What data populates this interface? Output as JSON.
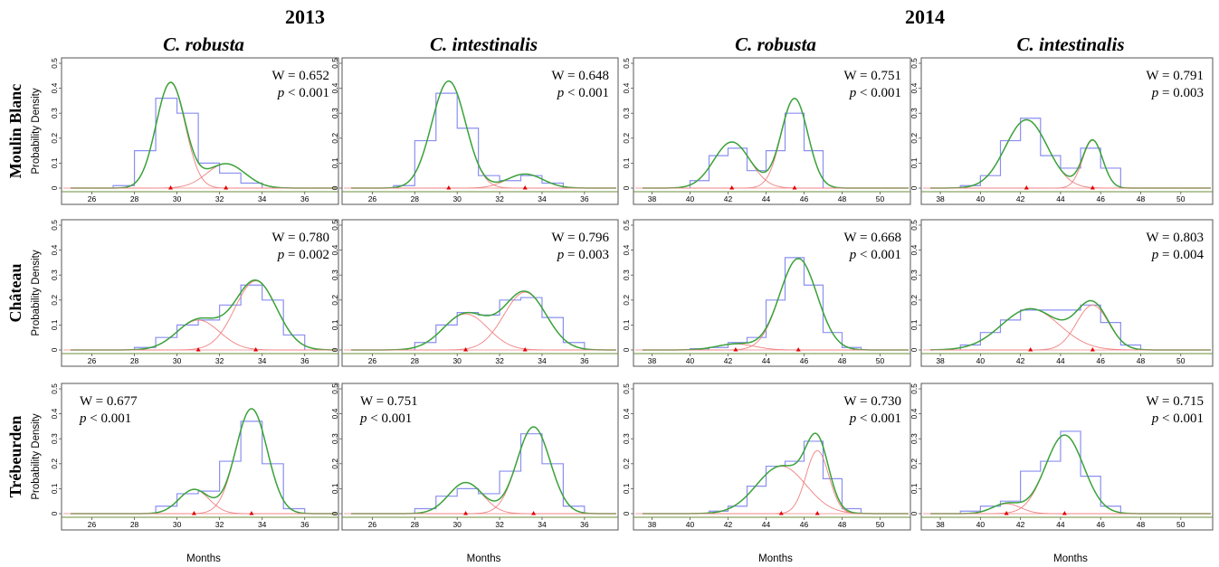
{
  "years": [
    "2013",
    "2014"
  ],
  "species": [
    "C. robusta",
    "C. intestinalis",
    "C. robusta",
    "C. intestinalis"
  ],
  "sites": [
    "Moulin Blanc",
    "Château",
    "Trébeurden"
  ],
  "ylabel": "Probability Density",
  "xlabel": "Months",
  "colors": {
    "histogram": "#8a8ff0",
    "components": "#f08080",
    "mixture": "#3aa23a",
    "axis": "#6b8e3a",
    "means": "#e00000"
  },
  "chart_data": [
    {
      "id": "mb-2013-rob",
      "type": "histogram",
      "site": "Moulin Blanc",
      "year": "2013",
      "species": "C. robusta",
      "W": "W = 0.652",
      "p": "< 0.001",
      "annot_pos": "top-right",
      "xlim": [
        25,
        37.5
      ],
      "ylim": [
        0,
        0.5
      ],
      "xticks": [
        26,
        28,
        30,
        32,
        34,
        36
      ],
      "yticks": [
        "0",
        "0.1",
        "0.2",
        "0.3",
        "0.4",
        "0.5"
      ],
      "bins": [
        {
          "x0": 27,
          "x1": 28,
          "y": 0.01
        },
        {
          "x0": 28,
          "x1": 29,
          "y": 0.15
        },
        {
          "x0": 29,
          "x1": 30,
          "y": 0.36
        },
        {
          "x0": 30,
          "x1": 31,
          "y": 0.3
        },
        {
          "x0": 31,
          "x1": 32,
          "y": 0.1
        },
        {
          "x0": 32,
          "x1": 33,
          "y": 0.06
        },
        {
          "x0": 33,
          "x1": 34,
          "y": 0.02
        }
      ],
      "components": [
        {
          "mean": 29.7,
          "sd": 0.68,
          "weight": 0.72
        },
        {
          "mean": 32.3,
          "sd": 0.9,
          "weight": 0.22
        }
      ]
    },
    {
      "id": "mb-2013-int",
      "type": "histogram",
      "site": "Moulin Blanc",
      "year": "2013",
      "species": "C. intestinalis",
      "W": "W = 0.648",
      "p": "< 0.001",
      "annot_pos": "top-right",
      "xlim": [
        25,
        37.5
      ],
      "ylim": [
        0,
        0.5
      ],
      "xticks": [
        26,
        28,
        30,
        32,
        34,
        36
      ],
      "yticks": [
        "0",
        "0.1",
        "0.2",
        "0.3",
        "0.4",
        "0.5"
      ],
      "bins": [
        {
          "x0": 27,
          "x1": 28,
          "y": 0.01
        },
        {
          "x0": 28,
          "x1": 29,
          "y": 0.19
        },
        {
          "x0": 29,
          "x1": 30,
          "y": 0.38
        },
        {
          "x0": 30,
          "x1": 31,
          "y": 0.24
        },
        {
          "x0": 31,
          "x1": 32,
          "y": 0.05
        },
        {
          "x0": 32,
          "x1": 33,
          "y": 0.03
        },
        {
          "x0": 33,
          "x1": 34,
          "y": 0.05
        },
        {
          "x0": 34,
          "x1": 35,
          "y": 0.02
        }
      ],
      "components": [
        {
          "mean": 29.6,
          "sd": 0.8,
          "weight": 0.86
        },
        {
          "mean": 33.2,
          "sd": 0.85,
          "weight": 0.12
        }
      ]
    },
    {
      "id": "mb-2014-rob",
      "type": "histogram",
      "site": "Moulin Blanc",
      "year": "2014",
      "species": "C. robusta",
      "W": "W = 0.751",
      "p": "< 0.001",
      "annot_pos": "top-right",
      "xlim": [
        37.5,
        51.5
      ],
      "ylim": [
        0,
        0.5
      ],
      "xticks": [
        38,
        40,
        42,
        44,
        46,
        48,
        50
      ],
      "yticks": [
        "0",
        "0.1",
        "0.2",
        "0.3",
        "0.4",
        "0.5"
      ],
      "bins": [
        {
          "x0": 40,
          "x1": 41,
          "y": 0.03
        },
        {
          "x0": 41,
          "x1": 42,
          "y": 0.13
        },
        {
          "x0": 42,
          "x1": 43,
          "y": 0.16
        },
        {
          "x0": 43,
          "x1": 44,
          "y": 0.07
        },
        {
          "x0": 44,
          "x1": 45,
          "y": 0.15
        },
        {
          "x0": 45,
          "x1": 46,
          "y": 0.3
        },
        {
          "x0": 46,
          "x1": 47,
          "y": 0.15
        }
      ],
      "components": [
        {
          "mean": 42.2,
          "sd": 0.95,
          "weight": 0.44
        },
        {
          "mean": 45.5,
          "sd": 0.7,
          "weight": 0.63
        }
      ]
    },
    {
      "id": "mb-2014-int",
      "type": "histogram",
      "site": "Moulin Blanc",
      "year": "2014",
      "species": "C. intestinalis",
      "W": "W = 0.791",
      "p": "= 0.003",
      "annot_pos": "top-right",
      "xlim": [
        37.5,
        51.5
      ],
      "ylim": [
        0,
        0.5
      ],
      "xticks": [
        38,
        40,
        42,
        44,
        46,
        48,
        50
      ],
      "yticks": [
        "0",
        "0.1",
        "0.2",
        "0.3",
        "0.4",
        "0.5"
      ],
      "bins": [
        {
          "x0": 39,
          "x1": 40,
          "y": 0.01
        },
        {
          "x0": 40,
          "x1": 41,
          "y": 0.05
        },
        {
          "x0": 41,
          "x1": 42,
          "y": 0.19
        },
        {
          "x0": 42,
          "x1": 43,
          "y": 0.28
        },
        {
          "x0": 43,
          "x1": 44,
          "y": 0.13
        },
        {
          "x0": 44,
          "x1": 45,
          "y": 0.08
        },
        {
          "x0": 45,
          "x1": 46,
          "y": 0.16
        },
        {
          "x0": 46,
          "x1": 47,
          "y": 0.08
        }
      ],
      "components": [
        {
          "mean": 42.3,
          "sd": 1.05,
          "weight": 0.72
        },
        {
          "mean": 45.6,
          "sd": 0.5,
          "weight": 0.24
        }
      ]
    },
    {
      "id": "ch-2013-rob",
      "type": "histogram",
      "site": "Château",
      "year": "2013",
      "species": "C. robusta",
      "W": "W = 0.780",
      "p": "= 0.002",
      "annot_pos": "top-right",
      "xlim": [
        25,
        37.5
      ],
      "ylim": [
        0,
        0.5
      ],
      "xticks": [
        26,
        28,
        30,
        32,
        34,
        36
      ],
      "yticks": [
        "0",
        "0.1",
        "0.2",
        "0.3",
        "0.4",
        "0.5"
      ],
      "bins": [
        {
          "x0": 28,
          "x1": 29,
          "y": 0.01
        },
        {
          "x0": 29,
          "x1": 30,
          "y": 0.05
        },
        {
          "x0": 30,
          "x1": 31,
          "y": 0.1
        },
        {
          "x0": 31,
          "x1": 32,
          "y": 0.12
        },
        {
          "x0": 32,
          "x1": 33,
          "y": 0.18
        },
        {
          "x0": 33,
          "x1": 34,
          "y": 0.26
        },
        {
          "x0": 34,
          "x1": 35,
          "y": 0.2
        },
        {
          "x0": 35,
          "x1": 36,
          "y": 0.06
        }
      ],
      "components": [
        {
          "mean": 31.0,
          "sd": 1.0,
          "weight": 0.3
        },
        {
          "mean": 33.7,
          "sd": 0.98,
          "weight": 0.68
        }
      ]
    },
    {
      "id": "ch-2013-int",
      "type": "histogram",
      "site": "Château",
      "year": "2013",
      "species": "C. intestinalis",
      "W": "W = 0.796",
      "p": "= 0.003",
      "annot_pos": "top-right",
      "xlim": [
        25,
        37.5
      ],
      "ylim": [
        0,
        0.5
      ],
      "xticks": [
        26,
        28,
        30,
        32,
        34,
        36
      ],
      "yticks": [
        "0",
        "0.1",
        "0.2",
        "0.3",
        "0.4",
        "0.5"
      ],
      "bins": [
        {
          "x0": 28,
          "x1": 29,
          "y": 0.03
        },
        {
          "x0": 29,
          "x1": 30,
          "y": 0.1
        },
        {
          "x0": 30,
          "x1": 31,
          "y": 0.15
        },
        {
          "x0": 31,
          "x1": 32,
          "y": 0.14
        },
        {
          "x0": 32,
          "x1": 33,
          "y": 0.2
        },
        {
          "x0": 33,
          "x1": 34,
          "y": 0.21
        },
        {
          "x0": 34,
          "x1": 35,
          "y": 0.13
        },
        {
          "x0": 35,
          "x1": 36,
          "y": 0.03
        }
      ],
      "components": [
        {
          "mean": 30.4,
          "sd": 1.05,
          "weight": 0.38
        },
        {
          "mean": 33.2,
          "sd": 1.0,
          "weight": 0.58
        }
      ]
    },
    {
      "id": "ch-2014-rob",
      "type": "histogram",
      "site": "Château",
      "year": "2014",
      "species": "C. robusta",
      "W": "W = 0.668",
      "p": "< 0.001",
      "annot_pos": "top-right",
      "xlim": [
        37.5,
        51.5
      ],
      "ylim": [
        0,
        0.5
      ],
      "xticks": [
        38,
        40,
        42,
        44,
        46,
        48,
        50
      ],
      "yticks": [
        "0",
        "0.1",
        "0.2",
        "0.3",
        "0.4",
        "0.5"
      ],
      "bins": [
        {
          "x0": 40,
          "x1": 41,
          "y": 0.005
        },
        {
          "x0": 41,
          "x1": 42,
          "y": 0.01
        },
        {
          "x0": 42,
          "x1": 43,
          "y": 0.03
        },
        {
          "x0": 43,
          "x1": 44,
          "y": 0.05
        },
        {
          "x0": 44,
          "x1": 45,
          "y": 0.2
        },
        {
          "x0": 45,
          "x1": 46,
          "y": 0.37
        },
        {
          "x0": 46,
          "x1": 47,
          "y": 0.26
        },
        {
          "x0": 47,
          "x1": 48,
          "y": 0.07
        },
        {
          "x0": 48,
          "x1": 49,
          "y": 0.01
        }
      ],
      "components": [
        {
          "mean": 42.4,
          "sd": 1.0,
          "weight": 0.06
        },
        {
          "mean": 45.7,
          "sd": 0.98,
          "weight": 0.9
        }
      ]
    },
    {
      "id": "ch-2014-int",
      "type": "histogram",
      "site": "Château",
      "year": "2014",
      "species": "C. intestinalis",
      "W": "W = 0.803",
      "p": "= 0.004",
      "annot_pos": "top-right",
      "xlim": [
        37.5,
        51.5
      ],
      "ylim": [
        0,
        0.5
      ],
      "xticks": [
        38,
        40,
        42,
        44,
        46,
        48,
        50
      ],
      "yticks": [
        "0",
        "0.1",
        "0.2",
        "0.3",
        "0.4",
        "0.5"
      ],
      "bins": [
        {
          "x0": 39,
          "x1": 40,
          "y": 0.02
        },
        {
          "x0": 40,
          "x1": 41,
          "y": 0.07
        },
        {
          "x0": 41,
          "x1": 42,
          "y": 0.12
        },
        {
          "x0": 42,
          "x1": 43,
          "y": 0.16
        },
        {
          "x0": 43,
          "x1": 44,
          "y": 0.16
        },
        {
          "x0": 44,
          "x1": 45,
          "y": 0.16
        },
        {
          "x0": 45,
          "x1": 46,
          "y": 0.18
        },
        {
          "x0": 46,
          "x1": 47,
          "y": 0.11
        },
        {
          "x0": 47,
          "x1": 48,
          "y": 0.02
        }
      ],
      "components": [
        {
          "mean": 42.5,
          "sd": 1.45,
          "weight": 0.6
        },
        {
          "mean": 45.6,
          "sd": 0.8,
          "weight": 0.36
        }
      ]
    },
    {
      "id": "tr-2013-rob",
      "type": "histogram",
      "site": "Trébeurden",
      "year": "2013",
      "species": "C. robusta",
      "W": "W = 0.677",
      "p": "< 0.001",
      "annot_pos": "top-left",
      "xlim": [
        25,
        37.5
      ],
      "ylim": [
        0,
        0.5
      ],
      "xticks": [
        26,
        28,
        30,
        32,
        34,
        36
      ],
      "yticks": [
        "0",
        "0.1",
        "0.2",
        "0.3",
        "0.4",
        "0.5"
      ],
      "bins": [
        {
          "x0": 29,
          "x1": 30,
          "y": 0.03
        },
        {
          "x0": 30,
          "x1": 31,
          "y": 0.08
        },
        {
          "x0": 31,
          "x1": 32,
          "y": 0.09
        },
        {
          "x0": 32,
          "x1": 33,
          "y": 0.21
        },
        {
          "x0": 33,
          "x1": 34,
          "y": 0.37
        },
        {
          "x0": 34,
          "x1": 35,
          "y": 0.2
        },
        {
          "x0": 35,
          "x1": 36,
          "y": 0.02
        }
      ],
      "components": [
        {
          "mean": 30.8,
          "sd": 0.7,
          "weight": 0.17
        },
        {
          "mean": 33.5,
          "sd": 0.74,
          "weight": 0.78
        }
      ]
    },
    {
      "id": "tr-2013-int",
      "type": "histogram",
      "site": "Trébeurden",
      "year": "2013",
      "species": "C. intestinalis",
      "W": "W = 0.751",
      "p": "< 0.001",
      "annot_pos": "top-left",
      "xlim": [
        25,
        37.5
      ],
      "ylim": [
        0,
        0.5
      ],
      "xticks": [
        26,
        28,
        30,
        32,
        34,
        36
      ],
      "yticks": [
        "0",
        "0.1",
        "0.2",
        "0.3",
        "0.4",
        "0.5"
      ],
      "bins": [
        {
          "x0": 28,
          "x1": 29,
          "y": 0.02
        },
        {
          "x0": 29,
          "x1": 30,
          "y": 0.07
        },
        {
          "x0": 30,
          "x1": 31,
          "y": 0.1
        },
        {
          "x0": 31,
          "x1": 32,
          "y": 0.08
        },
        {
          "x0": 32,
          "x1": 33,
          "y": 0.17
        },
        {
          "x0": 33,
          "x1": 34,
          "y": 0.32
        },
        {
          "x0": 34,
          "x1": 35,
          "y": 0.2
        },
        {
          "x0": 35,
          "x1": 36,
          "y": 0.03
        }
      ],
      "components": [
        {
          "mean": 30.4,
          "sd": 0.8,
          "weight": 0.25
        },
        {
          "mean": 33.6,
          "sd": 0.78,
          "weight": 0.68
        }
      ]
    },
    {
      "id": "tr-2014-rob",
      "type": "histogram",
      "site": "Trébeurden",
      "year": "2014",
      "species": "C. robusta",
      "W": "W = 0.730",
      "p": "< 0.001",
      "annot_pos": "top-right",
      "xlim": [
        37.5,
        51.5
      ],
      "ylim": [
        0,
        0.5
      ],
      "xticks": [
        38,
        40,
        42,
        44,
        46,
        48,
        50
      ],
      "yticks": [
        "0",
        "0.1",
        "0.2",
        "0.3",
        "0.4",
        "0.5"
      ],
      "bins": [
        {
          "x0": 41,
          "x1": 42,
          "y": 0.01
        },
        {
          "x0": 42,
          "x1": 43,
          "y": 0.03
        },
        {
          "x0": 43,
          "x1": 44,
          "y": 0.11
        },
        {
          "x0": 44,
          "x1": 45,
          "y": 0.19
        },
        {
          "x0": 45,
          "x1": 46,
          "y": 0.21
        },
        {
          "x0": 46,
          "x1": 47,
          "y": 0.29
        },
        {
          "x0": 47,
          "x1": 48,
          "y": 0.14
        },
        {
          "x0": 48,
          "x1": 49,
          "y": 0.02
        }
      ],
      "components": [
        {
          "mean": 44.8,
          "sd": 1.3,
          "weight": 0.62
        },
        {
          "mean": 46.7,
          "sd": 0.6,
          "weight": 0.38
        }
      ]
    },
    {
      "id": "tr-2014-int",
      "type": "histogram",
      "site": "Trébeurden",
      "year": "2014",
      "species": "C. intestinalis",
      "W": "W = 0.715",
      "p": "< 0.001",
      "annot_pos": "top-right",
      "xlim": [
        37.5,
        51.5
      ],
      "ylim": [
        0,
        0.5
      ],
      "xticks": [
        38,
        40,
        42,
        44,
        46,
        48,
        50
      ],
      "yticks": [
        "0",
        "0.1",
        "0.2",
        "0.3",
        "0.4",
        "0.5"
      ],
      "bins": [
        {
          "x0": 39,
          "x1": 40,
          "y": 0.01
        },
        {
          "x0": 40,
          "x1": 41,
          "y": 0.03
        },
        {
          "x0": 41,
          "x1": 42,
          "y": 0.05
        },
        {
          "x0": 42,
          "x1": 43,
          "y": 0.17
        },
        {
          "x0": 43,
          "x1": 44,
          "y": 0.21
        },
        {
          "x0": 44,
          "x1": 45,
          "y": 0.33
        },
        {
          "x0": 45,
          "x1": 46,
          "y": 0.15
        },
        {
          "x0": 46,
          "x1": 47,
          "y": 0.03
        }
      ],
      "components": [
        {
          "mean": 41.3,
          "sd": 0.7,
          "weight": 0.07
        },
        {
          "mean": 44.2,
          "sd": 0.95,
          "weight": 0.75
        }
      ]
    }
  ]
}
